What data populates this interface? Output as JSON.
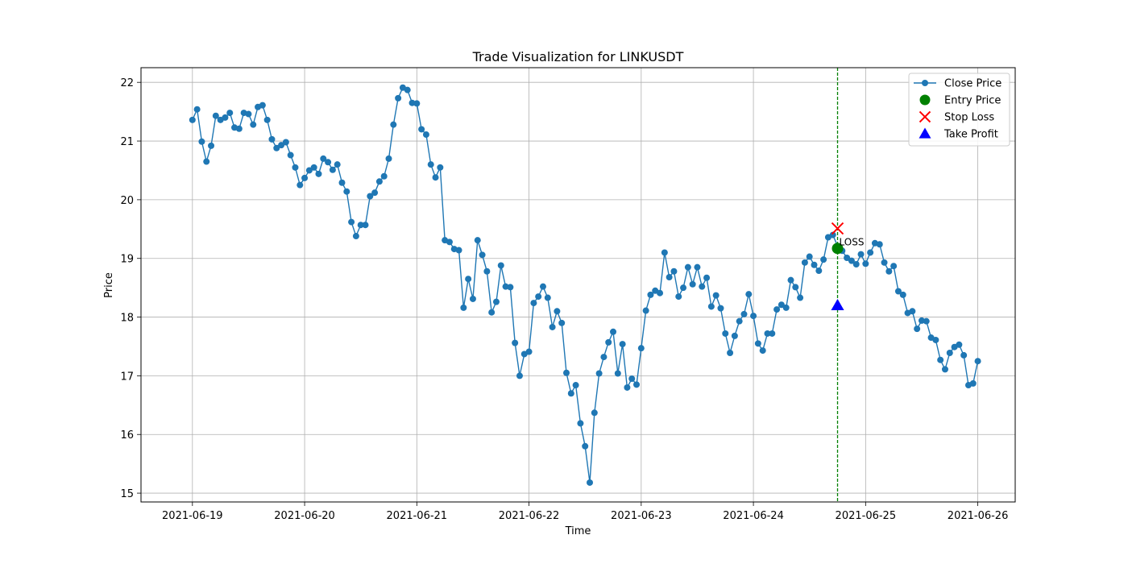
{
  "chart_data": {
    "type": "line",
    "title": "Trade Visualization for LINKUSDT",
    "xlabel": "Time",
    "ylabel": "Price",
    "xlim": [
      "2021-06-18T13:00",
      "2021-06-26T08:00"
    ],
    "ylim": [
      14.85,
      22.25
    ],
    "x_ticks": [
      "2021-06-19",
      "2021-06-20",
      "2021-06-21",
      "2021-06-22",
      "2021-06-23",
      "2021-06-24",
      "2021-06-25",
      "2021-06-26"
    ],
    "y_ticks": [
      "15",
      "16",
      "17",
      "18",
      "19",
      "20",
      "21",
      "22"
    ],
    "grid": true,
    "legend_position": "top-right",
    "series": [
      {
        "name": "Close Price",
        "color": "#1f77b4",
        "start": "2021-06-19T00:00",
        "interval_hours": 1,
        "values": [
          21.36,
          21.54,
          20.99,
          20.65,
          20.92,
          21.43,
          21.36,
          21.4,
          21.48,
          21.23,
          21.21,
          21.48,
          21.46,
          21.28,
          21.58,
          21.61,
          21.36,
          21.03,
          20.88,
          20.93,
          20.98,
          20.76,
          20.55,
          20.25,
          20.37,
          20.5,
          20.55,
          20.44,
          20.7,
          20.64,
          20.51,
          20.6,
          20.29,
          20.14,
          19.62,
          19.38,
          19.57,
          19.57,
          20.06,
          20.12,
          20.31,
          20.4,
          20.7,
          21.28,
          21.73,
          21.91,
          21.87,
          21.65,
          21.64,
          21.2,
          21.11,
          20.6,
          20.38,
          20.55,
          19.31,
          19.28,
          19.16,
          19.14,
          18.16,
          18.65,
          18.31,
          19.31,
          19.06,
          18.78,
          18.08,
          18.26,
          18.88,
          18.52,
          18.51,
          17.56,
          17.0,
          17.37,
          17.41,
          18.24,
          18.35,
          18.52,
          18.33,
          17.83,
          18.1,
          17.9,
          17.05,
          16.7,
          16.84,
          16.19,
          15.8,
          15.18,
          16.37,
          17.04,
          17.32,
          17.57,
          17.75,
          17.04,
          17.54,
          16.8,
          16.95,
          16.85,
          17.47,
          18.11,
          18.38,
          18.45,
          18.41,
          19.1,
          18.68,
          18.78,
          18.35,
          18.5,
          18.85,
          18.56,
          18.85,
          18.52,
          18.67,
          18.18,
          18.37,
          18.15,
          17.72,
          17.39,
          17.68,
          17.93,
          18.05,
          18.39,
          18.02,
          17.55,
          17.43,
          17.72,
          17.72,
          18.13,
          18.21,
          18.16,
          18.63,
          18.51,
          18.33,
          18.93,
          19.03,
          18.89,
          18.79,
          18.98,
          19.36,
          19.4,
          19.21,
          19.13,
          19.01,
          18.96,
          18.9,
          19.07,
          18.91,
          19.1,
          19.26,
          19.24,
          18.93,
          18.78,
          18.87,
          18.44,
          18.38,
          18.07,
          18.1,
          17.8,
          17.94,
          17.93,
          17.65,
          17.61,
          17.27,
          17.11,
          17.39,
          17.49,
          17.53,
          17.35,
          16.84,
          16.87,
          17.25
        ]
      }
    ],
    "markers": [
      {
        "name": "Entry Price",
        "x": "2021-06-24T18:00",
        "y": 19.17,
        "shape": "circle",
        "color": "#008000"
      },
      {
        "name": "Stop Loss",
        "x": "2021-06-24T18:00",
        "y": 19.51,
        "shape": "x",
        "color": "#ff0000"
      },
      {
        "name": "Take Profit",
        "x": "2021-06-24T18:00",
        "y": 18.2,
        "shape": "triangle",
        "color": "#0000ff"
      }
    ],
    "vline": {
      "x": "2021-06-24T18:00",
      "color": "#008000",
      "style": "dashed"
    },
    "annotations": [
      {
        "text": "LOSS",
        "x": "2021-06-24T18:00",
        "y": 19.17
      }
    ]
  }
}
